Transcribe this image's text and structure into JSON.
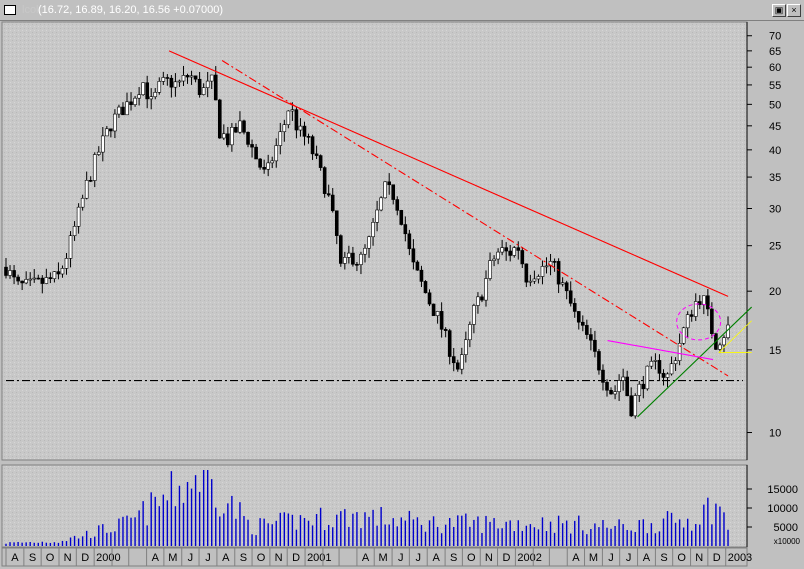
{
  "window": {
    "ticker": "lcok",
    "quote": "(16.72, 16.89, 16.20, 16.56 +0.07000)",
    "restore_glyph": "▣",
    "close_glyph": "×"
  },
  "colors": {
    "background": "#c8c8c8",
    "candles": "#000000",
    "long_resistance": "#ff0000",
    "dashed_resistance": "#ff0000",
    "support": "#008000",
    "magenta_line": "#ff00ff",
    "yellow_lines": "#ffff00",
    "volume": "#0000cc",
    "horizontal_support": "#000000"
  },
  "chart_data": [
    {
      "type": "candlestick",
      "title": "",
      "xlabel": "",
      "ylabel": "",
      "y_scale": "log",
      "ylim": [
        9,
        72
      ],
      "y_ticks": [
        70,
        65,
        60,
        55,
        50,
        45,
        40,
        35,
        30,
        25,
        20,
        15,
        10
      ],
      "x_range": [
        "1999-08-01",
        "2003-01-31"
      ],
      "x_tick_labels": [
        {
          "date": "1999-08-01",
          "label": "A"
        },
        {
          "date": "1999-09-01",
          "label": "S"
        },
        {
          "date": "1999-10-01",
          "label": "O"
        },
        {
          "date": "1999-11-01",
          "label": "N"
        },
        {
          "date": "1999-12-01",
          "label": "D"
        },
        {
          "date": "2000-01-01",
          "label": "2000"
        },
        {
          "date": "2000-02-01",
          "label": ""
        },
        {
          "date": "2000-03-01",
          "label": ""
        },
        {
          "date": "2000-04-01",
          "label": "A"
        },
        {
          "date": "2000-05-01",
          "label": "M"
        },
        {
          "date": "2000-06-01",
          "label": "J"
        },
        {
          "date": "2000-07-01",
          "label": "J"
        },
        {
          "date": "2000-08-01",
          "label": "A"
        },
        {
          "date": "2000-09-01",
          "label": "S"
        },
        {
          "date": "2000-10-01",
          "label": "O"
        },
        {
          "date": "2000-11-01",
          "label": "N"
        },
        {
          "date": "2000-12-01",
          "label": "D"
        },
        {
          "date": "2001-01-01",
          "label": "2001"
        },
        {
          "date": "2001-02-01",
          "label": ""
        },
        {
          "date": "2001-03-01",
          "label": ""
        },
        {
          "date": "2001-04-01",
          "label": "A"
        },
        {
          "date": "2001-05-01",
          "label": "M"
        },
        {
          "date": "2001-06-01",
          "label": "J"
        },
        {
          "date": "2001-07-01",
          "label": "J"
        },
        {
          "date": "2001-08-01",
          "label": "A"
        },
        {
          "date": "2001-09-01",
          "label": "S"
        },
        {
          "date": "2001-10-01",
          "label": "O"
        },
        {
          "date": "2001-11-01",
          "label": "N"
        },
        {
          "date": "2001-12-01",
          "label": "D"
        },
        {
          "date": "2002-01-01",
          "label": "2002"
        },
        {
          "date": "2002-02-01",
          "label": ""
        },
        {
          "date": "2002-03-01",
          "label": ""
        },
        {
          "date": "2002-04-01",
          "label": "A"
        },
        {
          "date": "2002-05-01",
          "label": "M"
        },
        {
          "date": "2002-06-01",
          "label": "J"
        },
        {
          "date": "2002-07-01",
          "label": "J"
        },
        {
          "date": "2002-08-01",
          "label": "A"
        },
        {
          "date": "2002-09-01",
          "label": "S"
        },
        {
          "date": "2002-10-01",
          "label": "O"
        },
        {
          "date": "2002-11-01",
          "label": "N"
        },
        {
          "date": "2002-12-01",
          "label": "D"
        },
        {
          "date": "2003-01-01",
          "label": "2003"
        }
      ],
      "price_path": [
        [
          "1999-08-01",
          22.5
        ],
        [
          "1999-08-20",
          20.5
        ],
        [
          "1999-09-10",
          20.5
        ],
        [
          "1999-10-10",
          21.0
        ],
        [
          "1999-11-01",
          21.5
        ],
        [
          "1999-11-15",
          24.0
        ],
        [
          "1999-12-01",
          28.0
        ],
        [
          "1999-12-20",
          34.0
        ],
        [
          "2000-01-10",
          40.0
        ],
        [
          "2000-02-01",
          46.0
        ],
        [
          "2000-02-20",
          49.0
        ],
        [
          "2000-03-10",
          52.0
        ],
        [
          "2000-03-25",
          56.0
        ],
        [
          "2000-04-10",
          50.0
        ],
        [
          "2000-04-25",
          55.0
        ],
        [
          "2000-05-10",
          56.0
        ],
        [
          "2000-05-25",
          55.0
        ],
        [
          "2000-06-15",
          58.0
        ],
        [
          "2000-07-05",
          53.0
        ],
        [
          "2000-07-25",
          56.0
        ],
        [
          "2000-08-05",
          44.0
        ],
        [
          "2000-08-20",
          42.0
        ],
        [
          "2000-09-10",
          45.0
        ],
        [
          "2000-09-25",
          42.0
        ],
        [
          "2000-10-10",
          38.0
        ],
        [
          "2000-10-25",
          35.0
        ],
        [
          "2000-11-10",
          40.0
        ],
        [
          "2000-11-25",
          45.0
        ],
        [
          "2000-12-05",
          50.0
        ],
        [
          "2000-12-20",
          44.0
        ],
        [
          "2001-01-05",
          42.0
        ],
        [
          "2001-01-20",
          38.0
        ],
        [
          "2001-02-10",
          32.0
        ],
        [
          "2001-02-25",
          26.0
        ],
        [
          "2001-03-05",
          22.0
        ],
        [
          "2001-03-20",
          24.0
        ],
        [
          "2001-04-05",
          23.0
        ],
        [
          "2001-04-20",
          25.0
        ],
        [
          "2001-05-05",
          29.0
        ],
        [
          "2001-05-20",
          33.0
        ],
        [
          "2001-06-05",
          32.0
        ],
        [
          "2001-06-20",
          28.0
        ],
        [
          "2001-07-05",
          23.0
        ],
        [
          "2001-07-20",
          21.0
        ],
        [
          "2001-08-05",
          19.0
        ],
        [
          "2001-08-20",
          17.5
        ],
        [
          "2001-09-05",
          15.5
        ],
        [
          "2001-09-25",
          13.5
        ],
        [
          "2001-10-05",
          15.0
        ],
        [
          "2001-10-20",
          18.0
        ],
        [
          "2001-11-05",
          20.0
        ],
        [
          "2001-11-20",
          23.0
        ],
        [
          "2001-12-05",
          24.5
        ],
        [
          "2001-12-20",
          24.0
        ],
        [
          "2002-01-05",
          25.0
        ],
        [
          "2002-01-20",
          21.5
        ],
        [
          "2002-02-05",
          22.0
        ],
        [
          "2002-02-20",
          22.5
        ],
        [
          "2002-03-05",
          23.0
        ],
        [
          "2002-03-20",
          21.0
        ],
        [
          "2002-04-05",
          19.0
        ],
        [
          "2002-04-20",
          17.0
        ],
        [
          "2002-05-05",
          16.0
        ],
        [
          "2002-05-20",
          14.5
        ],
        [
          "2002-06-05",
          13.0
        ],
        [
          "2002-06-20",
          12.0
        ],
        [
          "2002-07-05",
          13.5
        ],
        [
          "2002-07-20",
          11.2
        ],
        [
          "2002-08-05",
          12.5
        ],
        [
          "2002-08-20",
          13.5
        ],
        [
          "2002-09-05",
          14.0
        ],
        [
          "2002-09-20",
          13.0
        ],
        [
          "2002-10-05",
          14.5
        ],
        [
          "2002-10-20",
          16.5
        ],
        [
          "2002-11-01",
          18.0
        ],
        [
          "2002-11-15",
          19.5
        ],
        [
          "2002-11-25",
          19.0
        ],
        [
          "2002-12-05",
          17.0
        ],
        [
          "2002-12-15",
          15.5
        ],
        [
          "2002-12-25",
          16.0
        ],
        [
          "2003-01-05",
          16.7
        ],
        [
          "2003-01-10",
          16.56
        ]
      ],
      "trend_lines": [
        {
          "name": "long_resistance",
          "color": "#ff0000",
          "style": "solid",
          "from": [
            "2000-05-10",
            65.0
          ],
          "to": [
            "2003-01-05",
            19.5
          ]
        },
        {
          "name": "dashed_resistance",
          "color": "#ff0000",
          "style": "dashdot",
          "from": [
            "2000-08-10",
            62.0
          ],
          "to": [
            "2003-01-05",
            13.2
          ]
        },
        {
          "name": "support",
          "color": "#008000",
          "style": "solid",
          "from": [
            "2002-08-01",
            10.8
          ],
          "to": [
            "2003-02-15",
            18.5
          ]
        },
        {
          "name": "magenta",
          "color": "#ff00ff",
          "style": "solid",
          "from": [
            "2002-06-10",
            15.7
          ],
          "to": [
            "2002-12-10",
            14.3
          ]
        },
        {
          "name": "yellow_upper",
          "color": "#ffff00",
          "style": "solid",
          "from": [
            "2002-12-20",
            14.8
          ],
          "to": [
            "2003-02-15",
            17.3
          ]
        },
        {
          "name": "yellow_flat",
          "color": "#ffff00",
          "style": "solid",
          "from": [
            "2002-12-20",
            14.8
          ],
          "to": [
            "2003-02-15",
            14.8
          ]
        },
        {
          "name": "horizontal_support",
          "color": "#000000",
          "style": "dashdot",
          "from": [
            "1999-08-01",
            12.9
          ],
          "to": [
            "2003-01-31",
            12.9
          ]
        }
      ],
      "annotations": [
        {
          "type": "ellipse",
          "color": "#ff00ff",
          "style": "dashed",
          "center": [
            "2002-11-15",
            17.2
          ],
          "note": "circled reversal area"
        }
      ]
    },
    {
      "type": "bar",
      "title": "",
      "y_unit_label": "x10000",
      "ylim": [
        0,
        20000
      ],
      "y_ticks": [
        15000,
        10000,
        5000
      ],
      "volume_profile_note": "weekly volumes mostly 3000-8000; spike near 2000-07 about 19000; 2002-12 about 11000",
      "volume_anchors": [
        [
          "1999-08-01",
          800
        ],
        [
          "1999-11-01",
          1200
        ],
        [
          "2000-03-01",
          6000
        ],
        [
          "2000-07-05",
          19000
        ],
        [
          "2000-10-01",
          5000
        ],
        [
          "2001-01-01",
          7000
        ],
        [
          "2001-04-01",
          8000
        ],
        [
          "2001-08-01",
          6000
        ],
        [
          "2001-12-01",
          6000
        ],
        [
          "2002-03-01",
          6000
        ],
        [
          "2002-07-01",
          5000
        ],
        [
          "2002-11-01",
          7000
        ],
        [
          "2002-12-15",
          11000
        ],
        [
          "2003-01-10",
          4000
        ]
      ]
    }
  ]
}
